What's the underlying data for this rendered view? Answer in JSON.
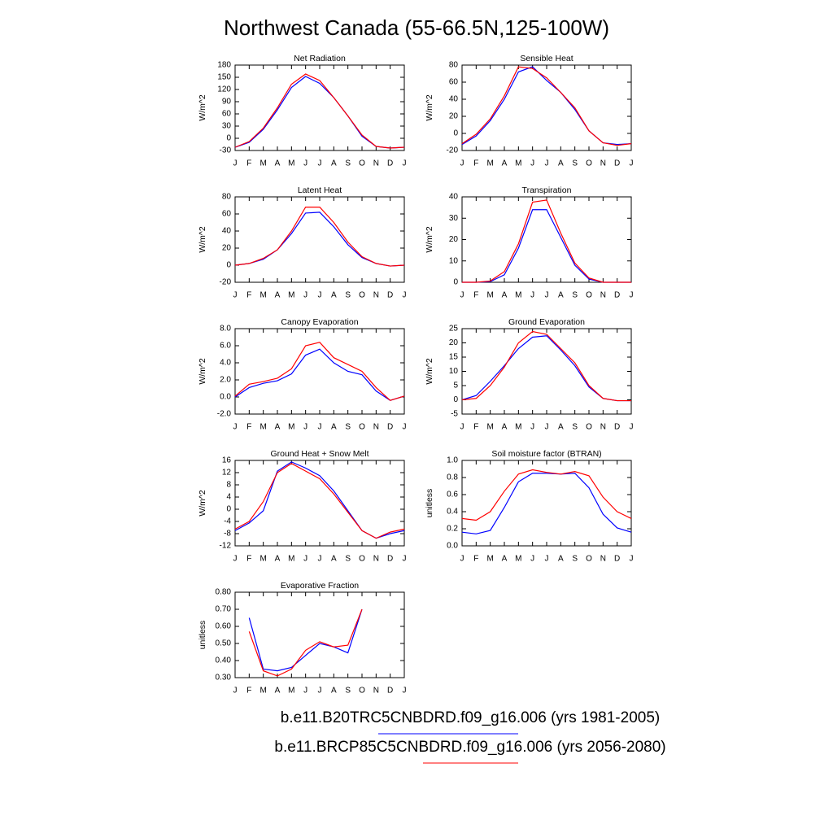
{
  "title": "Northwest Canada (55-66.5N,125-100W)",
  "legend": [
    {
      "label": "b.e11.B20TRC5CNBDRD.f09_g16.006 (yrs 1981-2005)",
      "color": "#0000ff"
    },
    {
      "label": "b.e11.BRCP85C5CNBDRD.f09_g16.006 (yrs 2056-2080)",
      "color": "#ff0000"
    }
  ],
  "chart_data": [
    {
      "type": "line",
      "title": "Net Radiation",
      "y_label": "W/m^2",
      "categories": [
        "J",
        "F",
        "M",
        "A",
        "M",
        "J",
        "J",
        "A",
        "S",
        "O",
        "N",
        "D",
        "J"
      ],
      "ylim": [
        -30,
        180
      ],
      "yticks": [
        -30,
        0,
        30,
        60,
        90,
        120,
        150,
        180
      ],
      "series": [
        {
          "color": "#0000ff",
          "values": [
            -22,
            -10,
            22,
            70,
            125,
            152,
            135,
            100,
            55,
            5,
            -20,
            -24,
            -22
          ]
        },
        {
          "color": "#ff0000",
          "values": [
            -22,
            -8,
            25,
            75,
            133,
            158,
            142,
            100,
            55,
            8,
            -20,
            -24,
            -22
          ]
        }
      ]
    },
    {
      "type": "line",
      "title": "Sensible Heat",
      "y_label": "W/m^2",
      "categories": [
        "J",
        "F",
        "M",
        "A",
        "M",
        "J",
        "J",
        "A",
        "S",
        "O",
        "N",
        "D",
        "J"
      ],
      "ylim": [
        -20,
        80
      ],
      "yticks": [
        -20,
        0,
        20,
        40,
        60,
        80
      ],
      "series": [
        {
          "color": "#0000ff",
          "values": [
            -13,
            -3,
            15,
            40,
            72,
            78,
            62,
            48,
            28,
            3,
            -11,
            -13,
            -12
          ]
        },
        {
          "color": "#ff0000",
          "values": [
            -12,
            -1,
            17,
            44,
            78,
            76,
            65,
            48,
            30,
            3,
            -11,
            -14,
            -12
          ]
        }
      ]
    },
    {
      "type": "line",
      "title": "Latent Heat",
      "y_label": "W/m^2",
      "categories": [
        "J",
        "F",
        "M",
        "A",
        "M",
        "J",
        "J",
        "A",
        "S",
        "O",
        "N",
        "D",
        "J"
      ],
      "ylim": [
        -20,
        80
      ],
      "yticks": [
        -20,
        0,
        20,
        40,
        60,
        80
      ],
      "series": [
        {
          "color": "#0000ff",
          "values": [
            0,
            2,
            7,
            18,
            37,
            61,
            62,
            45,
            24,
            9,
            2,
            -1,
            0
          ]
        },
        {
          "color": "#ff0000",
          "values": [
            0,
            2,
            8,
            18,
            40,
            68,
            68,
            50,
            27,
            10,
            2,
            -1,
            0
          ]
        }
      ]
    },
    {
      "type": "line",
      "title": "Transpiration",
      "y_label": "W/m^2",
      "categories": [
        "J",
        "F",
        "M",
        "A",
        "M",
        "J",
        "J",
        "A",
        "S",
        "O",
        "N",
        "D",
        "J"
      ],
      "ylim": [
        0,
        40
      ],
      "yticks": [
        0,
        10,
        20,
        30,
        40
      ],
      "series": [
        {
          "color": "#0000ff",
          "values": [
            0,
            0,
            0.3,
            3.5,
            16,
            34,
            34,
            21,
            8,
            1.5,
            0,
            0,
            0
          ]
        },
        {
          "color": "#ff0000",
          "values": [
            0,
            0,
            0.6,
            5,
            18,
            37.5,
            38.5,
            23,
            9,
            2,
            0,
            0,
            0
          ]
        }
      ]
    },
    {
      "type": "line",
      "title": "Canopy Evaporation",
      "y_label": "W/m^2",
      "categories": [
        "J",
        "F",
        "M",
        "A",
        "M",
        "J",
        "J",
        "A",
        "S",
        "O",
        "N",
        "D",
        "J"
      ],
      "ylim": [
        -2,
        8
      ],
      "yticks": [
        {
          "value": -2,
          "label": "-2.0"
        },
        {
          "value": 0,
          "label": "0.0"
        },
        {
          "value": 2,
          "label": "2.0"
        },
        {
          "value": 4,
          "label": "4.0"
        },
        {
          "value": 6,
          "label": "6.0"
        },
        {
          "value": 8,
          "label": "8.0"
        }
      ],
      "series": [
        {
          "color": "#0000ff",
          "values": [
            0,
            1.1,
            1.6,
            1.9,
            2.7,
            4.9,
            5.6,
            4.0,
            3.0,
            2.6,
            0.7,
            -0.4,
            0.1
          ]
        },
        {
          "color": "#ff0000",
          "values": [
            0.1,
            1.5,
            1.8,
            2.2,
            3.3,
            6.0,
            6.4,
            4.6,
            3.8,
            3.0,
            1.1,
            -0.4,
            0.1
          ]
        }
      ]
    },
    {
      "type": "line",
      "title": "Ground Evaporation",
      "y_label": "W/m^2",
      "categories": [
        "J",
        "F",
        "M",
        "A",
        "M",
        "J",
        "J",
        "A",
        "S",
        "O",
        "N",
        "D",
        "J"
      ],
      "ylim": [
        -5,
        25
      ],
      "yticks": [
        -5,
        0,
        5,
        10,
        15,
        20,
        25
      ],
      "series": [
        {
          "color": "#0000ff",
          "values": [
            0,
            1.5,
            6.5,
            12,
            18,
            22,
            22.5,
            17.5,
            12,
            4.5,
            0.5,
            -0.3,
            -0.3
          ]
        },
        {
          "color": "#ff0000",
          "values": [
            0,
            0.5,
            5,
            11.5,
            20,
            24,
            23,
            18,
            13,
            5,
            0.5,
            -0.3,
            -0.3
          ]
        }
      ]
    },
    {
      "type": "line",
      "title": "Ground Heat + Snow Melt",
      "y_label": "W/m^2",
      "categories": [
        "J",
        "F",
        "M",
        "A",
        "M",
        "J",
        "J",
        "A",
        "S",
        "O",
        "N",
        "D",
        "J"
      ],
      "ylim": [
        -12,
        16
      ],
      "yticks": [
        -12,
        -8,
        -4,
        0,
        4,
        8,
        12,
        16
      ],
      "series": [
        {
          "color": "#0000ff",
          "values": [
            -7,
            -4.5,
            -0.5,
            12.5,
            15.5,
            13.5,
            11,
            6,
            -0.5,
            -7,
            -9.5,
            -8,
            -7
          ]
        },
        {
          "color": "#ff0000",
          "values": [
            -6.5,
            -4,
            2.5,
            12,
            15,
            12.5,
            10,
            5,
            -1,
            -7,
            -9.5,
            -7.5,
            -6.5
          ]
        }
      ]
    },
    {
      "type": "line",
      "title": "Soil moisture factor (BTRAN)",
      "y_label": "unitless",
      "categories": [
        "J",
        "F",
        "M",
        "A",
        "M",
        "J",
        "J",
        "A",
        "S",
        "O",
        "N",
        "D",
        "J"
      ],
      "ylim": [
        0,
        1
      ],
      "yticks": [
        {
          "value": 0,
          "label": "0.0"
        },
        0.2,
        0.4,
        0.6,
        0.8,
        {
          "value": 1,
          "label": "1.0"
        }
      ],
      "series": [
        {
          "color": "#0000ff",
          "values": [
            0.16,
            0.14,
            0.18,
            0.45,
            0.75,
            0.85,
            0.85,
            0.84,
            0.85,
            0.68,
            0.37,
            0.21,
            0.16
          ]
        },
        {
          "color": "#ff0000",
          "values": [
            0.32,
            0.3,
            0.4,
            0.64,
            0.84,
            0.89,
            0.86,
            0.84,
            0.87,
            0.82,
            0.57,
            0.4,
            0.32
          ]
        }
      ]
    },
    {
      "type": "line",
      "title": "Evaporative Fraction",
      "y_label": "unitless",
      "categories": [
        "J",
        "F",
        "M",
        "A",
        "M",
        "J",
        "J",
        "A",
        "S",
        "O",
        "N",
        "D",
        "J"
      ],
      "ylim": [
        0.3,
        0.8
      ],
      "yticks": [
        {
          "value": 0.3,
          "label": "0.30"
        },
        {
          "value": 0.4,
          "label": "0.40"
        },
        {
          "value": 0.5,
          "label": "0.50"
        },
        {
          "value": 0.6,
          "label": "0.60"
        },
        {
          "value": 0.7,
          "label": "0.70"
        },
        {
          "value": 0.8,
          "label": "0.80"
        }
      ],
      "series": [
        {
          "color": "#0000ff",
          "values": [
            null,
            0.65,
            0.35,
            0.34,
            0.36,
            0.43,
            0.5,
            0.48,
            0.445,
            0.7,
            null,
            null,
            null
          ]
        },
        {
          "color": "#ff0000",
          "values": [
            null,
            0.57,
            0.34,
            0.31,
            0.35,
            0.46,
            0.51,
            0.48,
            0.49,
            0.7,
            null,
            null,
            null
          ]
        }
      ]
    }
  ]
}
